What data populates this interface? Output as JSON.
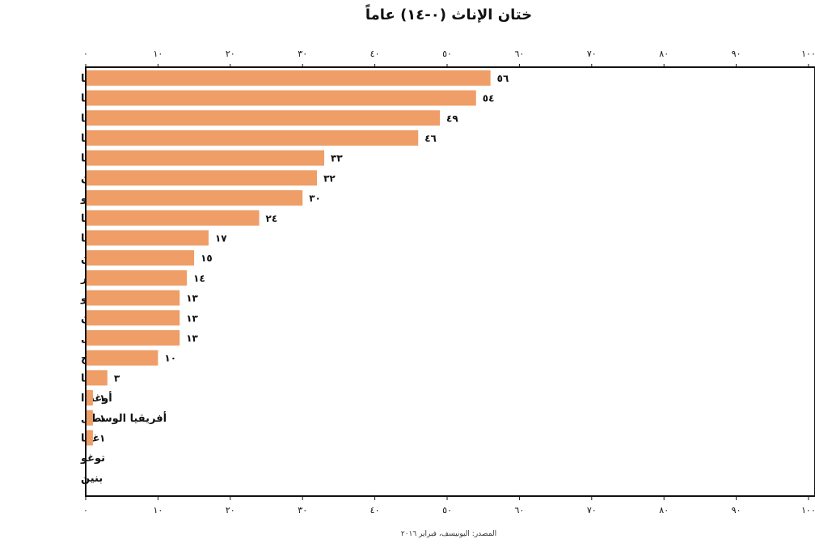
{
  "chart_data": {
    "type": "bar",
    "orientation": "horizontal",
    "title": "ختان الإناث (٠-١٤) عاماً",
    "source": "المصدر: اليونيسف، فبراير ٢٠١٦",
    "xlim": [
      0,
      100
    ],
    "x_ticks": [
      0,
      10,
      20,
      30,
      40,
      50,
      60,
      70,
      80,
      90,
      100
    ],
    "x_tick_labels": [
      "٠",
      "١٠",
      "٢٠",
      "٣٠",
      "٤٠",
      "٥٠",
      "٦٠",
      "٧٠",
      "٨٠",
      "٩٠",
      "١٠٠"
    ],
    "tick_axes": [
      "top",
      "bottom"
    ],
    "bar_color": "#ef9e67",
    "categories": [
      "غامبيا",
      "موريتانيا",
      "إندونيسيا",
      "غينيا",
      "إريتريا",
      "السودان",
      "غينيا بيساو",
      "إثيوبيا",
      "نيجيريا",
      "اليمن",
      "مصر",
      "بوركينا فاسو",
      "سيراليون",
      "السنغال",
      "ساحل العاج",
      "كينيا",
      "أوغندا",
      "أفريقيا الوسطى",
      "غانا",
      "توغو",
      "بنين"
    ],
    "values": [
      56,
      54,
      49,
      46,
      33,
      32,
      30,
      24,
      17,
      15,
      14,
      13,
      13,
      13,
      10,
      3,
      1,
      1,
      1,
      null,
      null
    ],
    "value_labels": [
      "٥٦",
      "٥٤",
      "٤٩",
      "٤٦",
      "٣٣",
      "٣٢",
      "٣٠",
      "٢٤",
      "١٧",
      "١٥",
      "١٤",
      "١٣",
      "١٣",
      "١٣",
      "١٠",
      "٣",
      "١",
      "١",
      "١",
      "",
      ""
    ]
  }
}
